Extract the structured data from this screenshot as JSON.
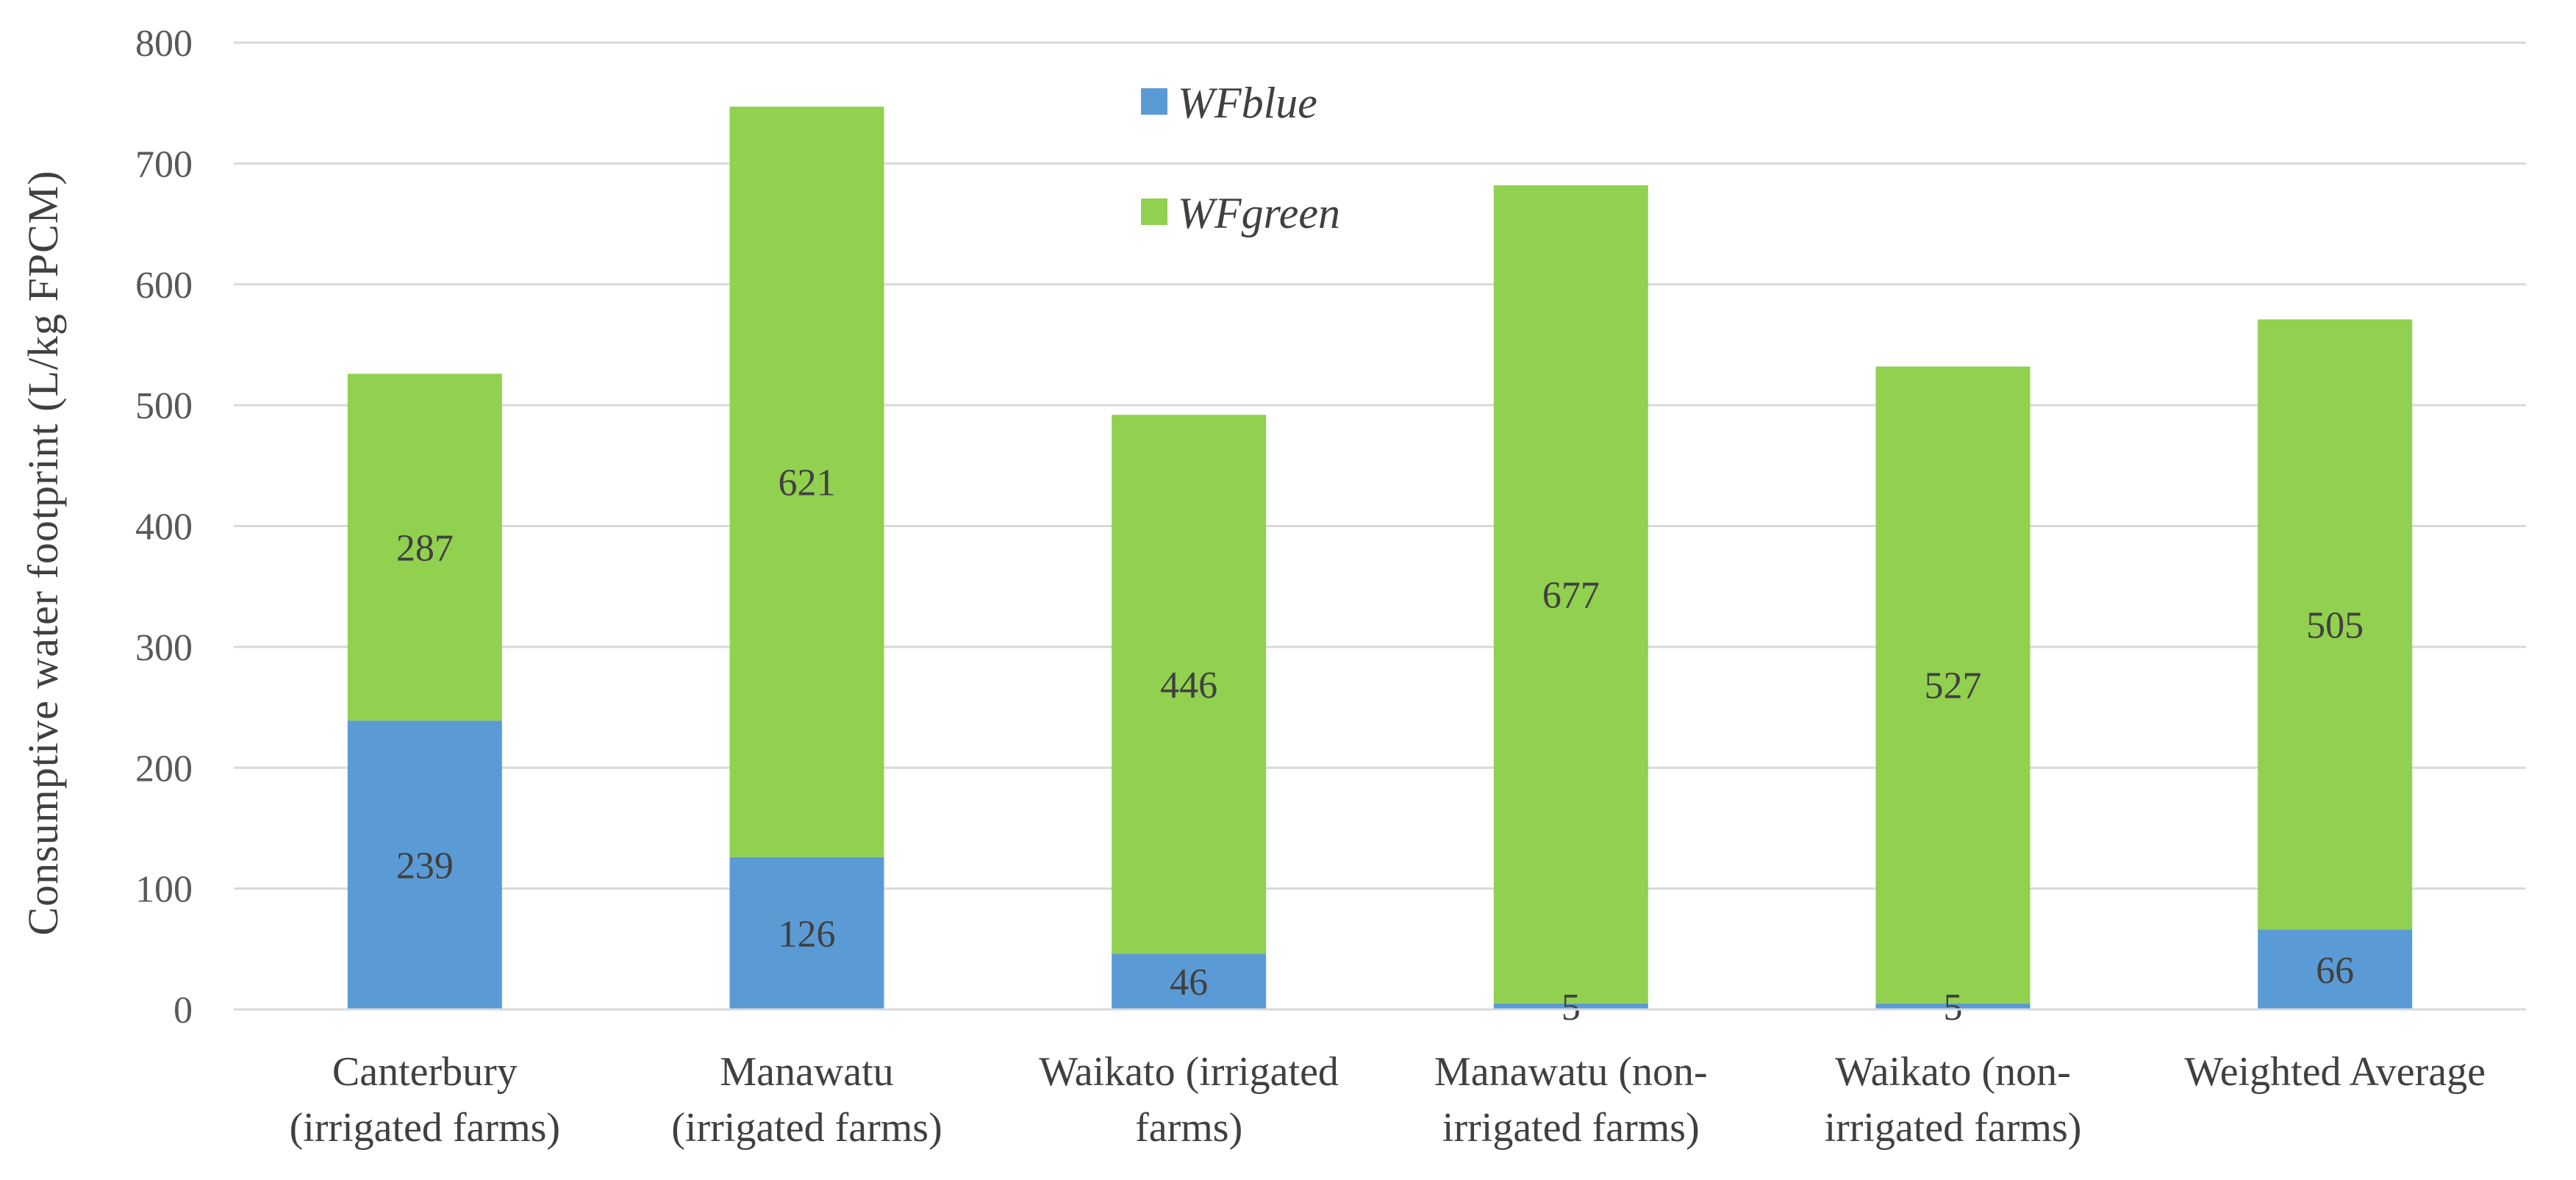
{
  "chart_data": {
    "type": "bar",
    "stacked": true,
    "categories": [
      [
        "Canterbury",
        "(irrigated farms)"
      ],
      [
        "Manawatu",
        "(irrigated farms)"
      ],
      [
        "Waikato (irrigated",
        "farms)"
      ],
      [
        "Manawatu (non-",
        "irrigated farms)"
      ],
      [
        "Waikato (non-",
        "irrigated farms)"
      ],
      [
        "Weighted Average"
      ]
    ],
    "series": [
      {
        "name": "WFblue",
        "color": "#5b9bd5",
        "values": [
          239,
          126,
          46,
          5,
          5,
          66
        ]
      },
      {
        "name": "WFgreen",
        "color": "#92d050",
        "values": [
          287,
          621,
          446,
          677,
          527,
          505
        ]
      }
    ],
    "ylabel": "Consumptive water footprint (L/kg FPCM)",
    "ylim": [
      0,
      800
    ],
    "yticks": [
      0,
      100,
      200,
      300,
      400,
      500,
      600,
      700,
      800
    ],
    "grid": true,
    "legend": "top-center"
  }
}
